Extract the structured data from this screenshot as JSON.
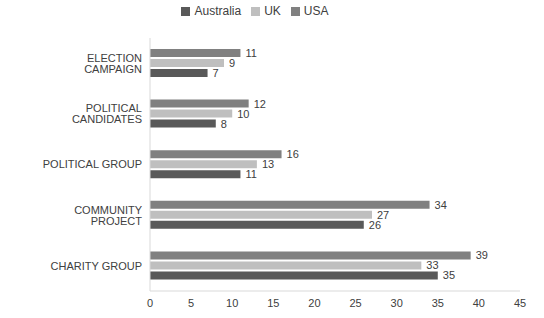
{
  "chart_data": {
    "type": "bar",
    "orientation": "horizontal",
    "categories": [
      "ELECTION CAMPAIGN",
      "POLITICAL CANDIDATES",
      "POLITICAL GROUP",
      "COMMUNITY PROJECT",
      "CHARITY GROUP"
    ],
    "series": [
      {
        "name": "USA",
        "color": "#808080",
        "values": [
          11,
          12,
          16,
          34,
          39
        ]
      },
      {
        "name": "UK",
        "color": "#bfbfbf",
        "values": [
          9,
          10,
          13,
          27,
          33
        ]
      },
      {
        "name": "Australia",
        "color": "#595959",
        "values": [
          7,
          8,
          11,
          26,
          35
        ]
      }
    ],
    "xlim": [
      0,
      45
    ],
    "xticks": [
      0,
      5,
      10,
      15,
      20,
      25,
      30,
      35,
      40,
      45
    ],
    "data_labels": true,
    "legend": "top",
    "grid": false
  }
}
